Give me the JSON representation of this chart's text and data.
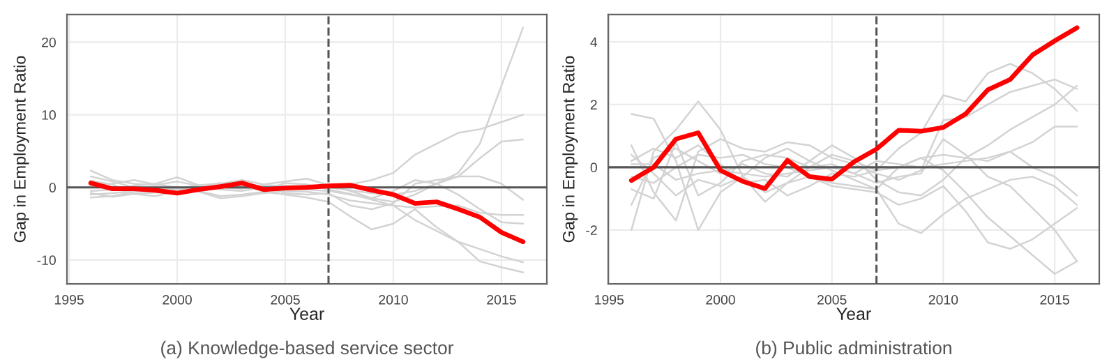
{
  "chart_data": [
    {
      "type": "line",
      "title": "(a) Knowledge-based service sector",
      "xlabel": "Year",
      "ylabel": "Gap in Employment Ratio",
      "x": [
        1996,
        1997,
        1998,
        1999,
        2000,
        2001,
        2002,
        2003,
        2004,
        2005,
        2006,
        2007,
        2008,
        2009,
        2010,
        2011,
        2012,
        2013,
        2014,
        2015,
        2016
      ],
      "xlim": [
        1994.9,
        2017.1
      ],
      "xticks": [
        1995,
        2000,
        2005,
        2010,
        2015
      ],
      "ylim": [
        -13.3,
        23.8
      ],
      "yticks": [
        -10,
        0,
        10,
        20
      ],
      "grid": true,
      "legend": false,
      "marker": "none",
      "line_style": "solid",
      "ref_lines": [
        {
          "axis": "x",
          "value": 2007,
          "color": "#555555",
          "line_style": "dashed"
        },
        {
          "axis": "y",
          "value": 0,
          "color": "#555555",
          "line_style": "solid"
        }
      ],
      "series": [
        {
          "color": "#d3d3d3",
          "values": [
            2.3,
            1.0,
            0.5,
            0.3,
            0.8,
            0.2,
            0.4,
            0.6,
            0.1,
            -0.2,
            -0.3,
            -0.5,
            -1.0,
            -1.5,
            -2.0,
            -1.0,
            0.5,
            2.0,
            6.0,
            14.0,
            22.0
          ]
        },
        {
          "color": "#d3d3d3",
          "values": [
            -1.0,
            -0.8,
            -0.5,
            -0.3,
            -0.2,
            0.0,
            0.2,
            0.1,
            0.3,
            0.2,
            0.1,
            0.0,
            0.4,
            1.0,
            2.0,
            4.5,
            6.0,
            7.5,
            8.0,
            9.0,
            10.0
          ]
        },
        {
          "color": "#d3d3d3",
          "values": [
            -0.5,
            -0.3,
            0.2,
            0.5,
            1.4,
            0.3,
            -0.3,
            -0.5,
            0.0,
            0.2,
            0.1,
            0.0,
            -0.4,
            -0.8,
            -1.0,
            -0.5,
            0.5,
            1.5,
            4.0,
            6.3,
            6.6
          ]
        },
        {
          "color": "#d3d3d3",
          "values": [
            -1.4,
            -1.2,
            -0.6,
            -0.4,
            -0.3,
            -0.5,
            -1.2,
            -1.0,
            -0.6,
            -1.0,
            -1.4,
            -2.0,
            -4.0,
            -5.8,
            -5.0,
            -3.0,
            -5.5,
            -7.5,
            -8.5,
            -9.5,
            -10.3
          ]
        },
        {
          "color": "#d3d3d3",
          "values": [
            0.3,
            0.5,
            1.0,
            0.4,
            0.0,
            -0.6,
            -1.5,
            -1.2,
            -0.8,
            -0.5,
            -0.6,
            -1.0,
            -1.8,
            -2.2,
            -2.5,
            -4.5,
            -6.0,
            -7.5,
            -10.2,
            -11.0,
            -11.7
          ]
        },
        {
          "color": "#d3d3d3",
          "values": [
            1.5,
            0.8,
            0.0,
            -0.6,
            -0.2,
            0.3,
            0.5,
            1.0,
            0.4,
            0.8,
            1.2,
            0.3,
            -0.5,
            -1.5,
            -0.5,
            1.0,
            0.5,
            -1.0,
            -3.0,
            -4.8,
            -5.0
          ]
        },
        {
          "color": "#d3d3d3",
          "values": [
            -0.8,
            -1.3,
            -0.9,
            -0.7,
            -0.9,
            -0.4,
            0.0,
            -0.2,
            0.3,
            -0.8,
            -1.0,
            -0.8,
            -2.5,
            -3.0,
            -2.2,
            0.5,
            1.0,
            1.5,
            1.5,
            0.5,
            -1.7
          ]
        },
        {
          "color": "#d3d3d3",
          "values": [
            0.9,
            0.4,
            -0.9,
            -1.2,
            -0.5,
            0.2,
            0.6,
            0.0,
            -0.4,
            0.6,
            0.4,
            -0.3,
            -0.9,
            -1.7,
            -2.5,
            -2.8,
            -2.6,
            -2.5,
            -3.5,
            -3.8,
            -3.8
          ]
        },
        {
          "color": "#ff0000",
          "values": [
            0.6,
            -0.2,
            -0.2,
            -0.4,
            -0.8,
            -0.3,
            0.1,
            0.6,
            -0.3,
            -0.1,
            0.0,
            0.2,
            0.3,
            -0.4,
            -1.0,
            -2.2,
            -2.0,
            -3.0,
            -4.1,
            -6.2,
            -7.5
          ]
        }
      ]
    },
    {
      "type": "line",
      "title": "(b) Public administration",
      "xlabel": "Year",
      "ylabel": "Gap in Employment Ratio",
      "x": [
        1996,
        1997,
        1998,
        1999,
        2000,
        2001,
        2002,
        2003,
        2004,
        2005,
        2006,
        2007,
        2008,
        2009,
        2010,
        2011,
        2012,
        2013,
        2014,
        2015,
        2016
      ],
      "xlim": [
        1994.96,
        2017.0
      ],
      "xticks": [
        1995,
        2000,
        2005,
        2010,
        2015
      ],
      "ylim": [
        -3.72,
        4.87
      ],
      "yticks": [
        -2,
        0,
        2,
        4
      ],
      "grid": true,
      "legend": false,
      "marker": "none",
      "line_style": "solid",
      "ref_lines": [
        {
          "axis": "x",
          "value": 2007,
          "color": "#555555",
          "line_style": "dashed"
        },
        {
          "axis": "y",
          "value": 0,
          "color": "#555555",
          "line_style": "solid"
        }
      ],
      "series": [
        {
          "color": "#d3d3d3",
          "values": [
            1.7,
            1.55,
            0.2,
            -2.0,
            -0.8,
            -0.3,
            0.3,
            0.6,
            0.2,
            -0.1,
            -0.4,
            -0.7,
            -1.8,
            -2.1,
            -1.5,
            -1.0,
            -0.7,
            -0.4,
            -0.3,
            -0.6,
            -1.2
          ]
        },
        {
          "color": "#d3d3d3",
          "values": [
            -2.0,
            0.5,
            1.2,
            2.1,
            1.2,
            -0.3,
            -0.8,
            -0.5,
            0.0,
            0.4,
            0.2,
            -0.1,
            0.6,
            1.1,
            2.3,
            2.1,
            3.0,
            3.3,
            3.0,
            2.5,
            1.8
          ]
        },
        {
          "color": "#d3d3d3",
          "values": [
            0.7,
            -0.8,
            -1.7,
            0.5,
            0.9,
            0.6,
            0.5,
            0.8,
            0.7,
            0.3,
            0.1,
            -0.2,
            -0.4,
            -0.1,
            1.5,
            1.6,
            2.0,
            2.4,
            2.6,
            2.8,
            2.5
          ]
        },
        {
          "color": "#d3d3d3",
          "values": [
            -1.2,
            0.3,
            0.6,
            0.2,
            -0.2,
            0.1,
            -0.2,
            -0.3,
            0.2,
            0.7,
            0.3,
            -0.4,
            -0.8,
            -0.9,
            -0.4,
            0.3,
            0.7,
            1.2,
            1.6,
            2.0,
            2.6
          ]
        },
        {
          "color": "#d3d3d3",
          "values": [
            0.4,
            -0.2,
            -0.9,
            -0.4,
            -0.6,
            -0.3,
            -1.1,
            -0.5,
            -0.3,
            -0.6,
            -0.7,
            -0.8,
            -1.2,
            -1.0,
            -0.6,
            -1.4,
            -2.4,
            -2.6,
            -2.3,
            -1.8,
            -1.3
          ]
        },
        {
          "color": "#d3d3d3",
          "values": [
            -0.7,
            -1.0,
            0.8,
            -0.9,
            -0.5,
            0.2,
            0.4,
            0.3,
            0.0,
            0.1,
            -0.2,
            -0.5,
            -0.3,
            -0.2,
            0.9,
            0.4,
            -0.3,
            -0.6,
            -1.3,
            -2.0,
            -3.0
          ]
        },
        {
          "color": "#d3d3d3",
          "values": [
            0.2,
            0.6,
            0.3,
            0.7,
            0.1,
            -0.5,
            -0.4,
            -0.9,
            -0.6,
            -0.2,
            -0.3,
            -0.1,
            0.0,
            0.3,
            -0.1,
            -0.8,
            -1.6,
            -2.2,
            -2.8,
            -3.4,
            -3.0
          ]
        },
        {
          "color": "#d3d3d3",
          "values": [
            -0.3,
            -0.5,
            0.0,
            0.4,
            0.3,
            0.4,
            0.1,
            0.0,
            -0.3,
            -0.5,
            -0.6,
            -0.7,
            0.0,
            0.3,
            0.4,
            0.3,
            0.2,
            0.5,
            0.0,
            -0.3,
            -0.9
          ]
        },
        {
          "color": "#d3d3d3",
          "values": [
            0.1,
            0.1,
            -0.4,
            -0.2,
            -0.1,
            -0.2,
            -0.3,
            -0.2,
            -0.1,
            0.0,
            -0.2,
            0.2,
            0.1,
            0.0,
            0.1,
            0.2,
            0.3,
            0.5,
            0.8,
            1.3,
            1.3
          ]
        },
        {
          "color": "#ff0000",
          "values": [
            -0.42,
            0.0,
            0.9,
            1.1,
            -0.1,
            -0.45,
            -0.68,
            0.22,
            -0.3,
            -0.38,
            0.18,
            0.58,
            1.18,
            1.15,
            1.27,
            1.7,
            2.47,
            2.8,
            3.58,
            4.03,
            4.45
          ]
        }
      ]
    }
  ]
}
